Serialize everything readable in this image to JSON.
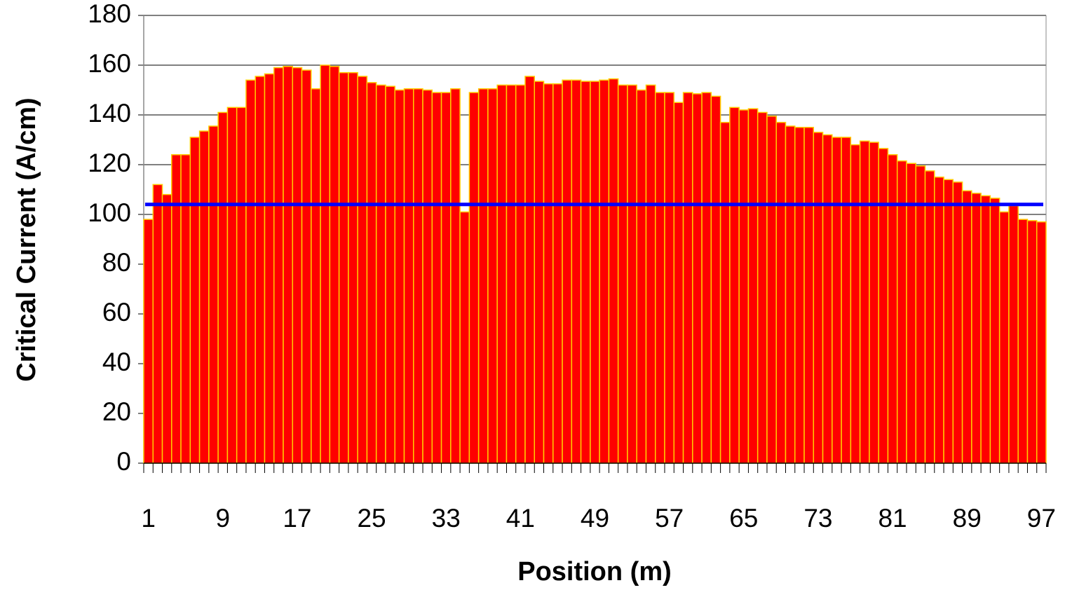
{
  "chart_data": {
    "type": "bar",
    "xlabel": "Position (m)",
    "ylabel": "Critical Current (A/cm)",
    "categories": [
      "1",
      null,
      null,
      null,
      null,
      null,
      null,
      null,
      "9",
      null,
      null,
      null,
      null,
      null,
      null,
      null,
      "17",
      null,
      null,
      null,
      null,
      null,
      null,
      null,
      "25",
      null,
      null,
      null,
      null,
      null,
      null,
      null,
      "33",
      null,
      null,
      null,
      null,
      null,
      null,
      null,
      "41",
      null,
      null,
      null,
      null,
      null,
      null,
      null,
      "49",
      null,
      null,
      null,
      null,
      null,
      null,
      null,
      "57",
      null,
      null,
      null,
      null,
      null,
      null,
      null,
      "65",
      null,
      null,
      null,
      null,
      null,
      null,
      null,
      "73",
      null,
      null,
      null,
      null,
      null,
      null,
      null,
      "81",
      null,
      null,
      null,
      null,
      null,
      null,
      null,
      "89",
      null,
      null,
      null,
      null,
      null,
      null,
      null,
      "97"
    ],
    "values": [
      98,
      112,
      108,
      124,
      124,
      131,
      133.5,
      135.5,
      141,
      143,
      143,
      154,
      155.5,
      156.5,
      159,
      159.5,
      159,
      158,
      150.5,
      160,
      159.5,
      157,
      157,
      155.5,
      153,
      152,
      151.5,
      150,
      150.5,
      150.5,
      150,
      149,
      149,
      150.5,
      101,
      149,
      150.5,
      150.5,
      152,
      152,
      152,
      155.5,
      153.5,
      152.5,
      152.5,
      154,
      154,
      153.5,
      153.5,
      154,
      154.5,
      152,
      152,
      150,
      152,
      149,
      149,
      145,
      149,
      148.5,
      149,
      147.5,
      137,
      143,
      142,
      142.5,
      141,
      139.5,
      137,
      135.5,
      135,
      135,
      133,
      132,
      131,
      131,
      128,
      129.5,
      129,
      126.5,
      124,
      121.5,
      120.5,
      119.5,
      117.5,
      115,
      114,
      113,
      109.5,
      108.5,
      107.5,
      106.5,
      101,
      103.5,
      98,
      97.5,
      97
    ],
    "color": "#ff0000",
    "edge_color": "#ffcc00",
    "reference_line": {
      "value": 104,
      "color": "#0000ff"
    },
    "ylim": [
      0,
      180
    ],
    "yticks": [
      0,
      20,
      40,
      60,
      80,
      100,
      120,
      140,
      160,
      180
    ],
    "grid": true
  }
}
